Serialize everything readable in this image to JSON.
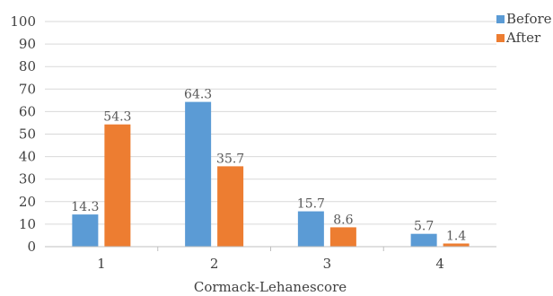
{
  "chart_data": {
    "type": "bar",
    "categories": [
      "1",
      "2",
      "3",
      "4"
    ],
    "series": [
      {
        "name": "Before",
        "color": "#5b9bd5",
        "values": [
          14.3,
          64.3,
          15.7,
          5.7
        ]
      },
      {
        "name": "After",
        "color": "#ed7d31",
        "values": [
          54.3,
          35.7,
          8.6,
          1.4
        ]
      }
    ],
    "title": "",
    "xlabel": "Cormack-Lehanescore",
    "ylabel": "",
    "ylim": [
      0,
      100
    ],
    "yticks": [
      0,
      10,
      20,
      30,
      40,
      50,
      60,
      70,
      80,
      90,
      100
    ],
    "grid": true,
    "legend_position": "top-right",
    "data_labels": true
  }
}
